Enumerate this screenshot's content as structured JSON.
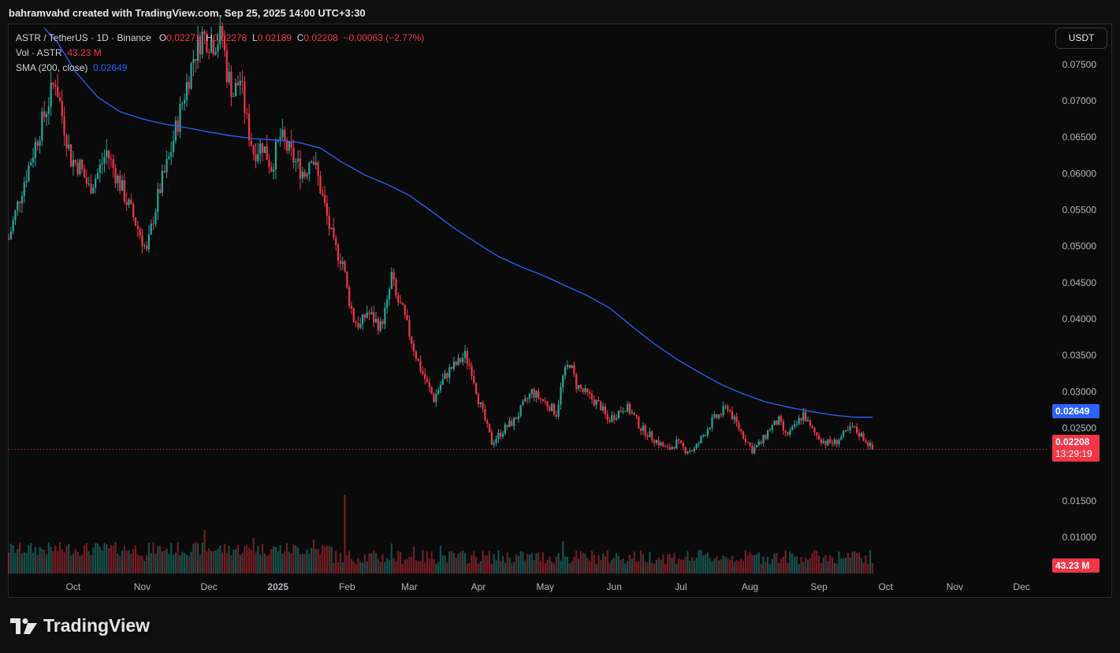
{
  "header": {
    "attribution": "bahramvahd created with TradingView.com, Sep 25, 2025 14:00 UTC+3:30"
  },
  "legend": {
    "symbol": "ASTR / TetherUS · 1D · Binance",
    "o_label": "O",
    "o_value": "0.02271",
    "h_label": "H",
    "h_value": "0.02278",
    "l_label": "L",
    "l_value": "0.02189",
    "c_label": "C",
    "c_value": "0.02208",
    "change": "−0.00063 (−2.77%)",
    "vol_label": "Vol · ASTR",
    "vol_value": "43.23 M",
    "sma_label": "SMA (200, close)",
    "sma_value": "0.02649"
  },
  "currency_button": "USDT",
  "price_tags": {
    "sma": "0.02649",
    "last_price": "0.02208",
    "countdown": "13:29:19",
    "volume": "43.23 M"
  },
  "footer": {
    "brand": "TradingView"
  },
  "colors": {
    "up": "#26a69a",
    "down": "#f23645",
    "sma": "#2962ff",
    "background": "#0a0a0a"
  },
  "chart_data": {
    "type": "candlestick",
    "symbol": "ASTR / TetherUS",
    "interval": "1D",
    "exchange": "Binance",
    "y_axis_ticks": [
      "0.07500",
      "0.07000",
      "0.06500",
      "0.06000",
      "0.05500",
      "0.05000",
      "0.04500",
      "0.04000",
      "0.03500",
      "0.03000",
      "0.02500",
      "0.01500",
      "0.01000"
    ],
    "y_tick_values": [
      0.075,
      0.07,
      0.065,
      0.06,
      0.055,
      0.05,
      0.045,
      0.04,
      0.035,
      0.03,
      0.025,
      0.015,
      0.01
    ],
    "ylim": [
      0.0048,
      0.0805
    ],
    "x_axis_labels": [
      "Oct",
      "Nov",
      "Dec",
      "2025",
      "Feb",
      "Mar",
      "Apr",
      "May",
      "Jun",
      "Jul",
      "Aug",
      "Sep",
      "Oct",
      "Nov",
      "Dec"
    ],
    "x_axis_days": [
      29,
      60,
      90,
      121,
      152,
      180,
      211,
      241,
      272,
      302,
      333,
      364,
      394,
      425,
      455
    ],
    "xlim": [
      0,
      467
    ],
    "start_date": "2024-09-02",
    "last_day": 388,
    "close_path": [
      [
        0,
        0.051
      ],
      [
        6,
        0.058
      ],
      [
        12,
        0.064
      ],
      [
        18,
        0.07
      ],
      [
        21,
        0.073
      ],
      [
        24,
        0.068
      ],
      [
        28,
        0.062
      ],
      [
        32,
        0.061
      ],
      [
        36,
        0.058
      ],
      [
        40,
        0.06
      ],
      [
        44,
        0.063
      ],
      [
        48,
        0.06
      ],
      [
        52,
        0.057
      ],
      [
        56,
        0.054
      ],
      [
        60,
        0.051
      ],
      [
        62,
        0.049
      ],
      [
        65,
        0.054
      ],
      [
        68,
        0.058
      ],
      [
        72,
        0.062
      ],
      [
        75,
        0.066
      ],
      [
        79,
        0.071
      ],
      [
        83,
        0.076
      ],
      [
        87,
        0.079
      ],
      [
        92,
        0.078
      ],
      [
        96,
        0.079
      ],
      [
        98,
        0.074
      ],
      [
        101,
        0.071
      ],
      [
        104,
        0.073
      ],
      [
        107,
        0.067
      ],
      [
        110,
        0.063
      ],
      [
        114,
        0.064
      ],
      [
        118,
        0.061
      ],
      [
        122,
        0.065
      ],
      [
        126,
        0.063
      ],
      [
        130,
        0.061
      ],
      [
        133,
        0.06
      ],
      [
        136,
        0.063
      ],
      [
        140,
        0.058
      ],
      [
        143,
        0.054
      ],
      [
        146,
        0.05
      ],
      [
        150,
        0.048
      ],
      [
        152,
        0.044
      ],
      [
        155,
        0.04
      ],
      [
        158,
        0.039
      ],
      [
        161,
        0.041
      ],
      [
        164,
        0.04
      ],
      [
        167,
        0.039
      ],
      [
        170,
        0.042
      ],
      [
        172,
        0.046
      ],
      [
        174,
        0.043
      ],
      [
        177,
        0.041
      ],
      [
        180,
        0.038
      ],
      [
        184,
        0.034
      ],
      [
        188,
        0.031
      ],
      [
        191,
        0.029
      ],
      [
        194,
        0.031
      ],
      [
        198,
        0.033
      ],
      [
        202,
        0.034
      ],
      [
        205,
        0.035
      ],
      [
        208,
        0.033
      ],
      [
        211,
        0.029
      ],
      [
        214,
        0.026
      ],
      [
        217,
        0.023
      ],
      [
        220,
        0.024
      ],
      [
        223,
        0.025
      ],
      [
        227,
        0.026
      ],
      [
        231,
        0.028
      ],
      [
        235,
        0.03
      ],
      [
        239,
        0.029
      ],
      [
        243,
        0.028
      ],
      [
        246,
        0.027
      ],
      [
        249,
        0.032
      ],
      [
        252,
        0.034
      ],
      [
        255,
        0.031
      ],
      [
        258,
        0.03
      ],
      [
        262,
        0.029
      ],
      [
        266,
        0.028
      ],
      [
        269,
        0.026
      ],
      [
        273,
        0.027
      ],
      [
        277,
        0.028
      ],
      [
        280,
        0.027
      ],
      [
        284,
        0.025
      ],
      [
        288,
        0.024
      ],
      [
        292,
        0.023
      ],
      [
        296,
        0.022
      ],
      [
        300,
        0.023
      ],
      [
        304,
        0.022
      ],
      [
        308,
        0.022
      ],
      [
        312,
        0.024
      ],
      [
        316,
        0.026
      ],
      [
        320,
        0.027
      ],
      [
        323,
        0.028
      ],
      [
        326,
        0.026
      ],
      [
        330,
        0.024
      ],
      [
        334,
        0.022
      ],
      [
        338,
        0.023
      ],
      [
        342,
        0.025
      ],
      [
        346,
        0.026
      ],
      [
        349,
        0.024
      ],
      [
        353,
        0.025
      ],
      [
        357,
        0.027
      ],
      [
        360,
        0.025
      ],
      [
        363,
        0.024
      ],
      [
        367,
        0.023
      ],
      [
        371,
        0.023
      ],
      [
        375,
        0.024
      ],
      [
        379,
        0.025
      ],
      [
        383,
        0.024
      ],
      [
        386,
        0.023
      ],
      [
        388,
        0.02208
      ]
    ],
    "sma_path": [
      [
        16,
        0.08
      ],
      [
        22,
        0.078
      ],
      [
        30,
        0.074
      ],
      [
        40,
        0.0705
      ],
      [
        50,
        0.0685
      ],
      [
        60,
        0.0675
      ],
      [
        70,
        0.0668
      ],
      [
        80,
        0.0663
      ],
      [
        90,
        0.0657
      ],
      [
        100,
        0.0652
      ],
      [
        110,
        0.0648
      ],
      [
        120,
        0.0646
      ],
      [
        130,
        0.0643
      ],
      [
        140,
        0.0635
      ],
      [
        150,
        0.0615
      ],
      [
        160,
        0.0598
      ],
      [
        170,
        0.0585
      ],
      [
        180,
        0.057
      ],
      [
        190,
        0.0548
      ],
      [
        200,
        0.0525
      ],
      [
        210,
        0.0505
      ],
      [
        220,
        0.0486
      ],
      [
        230,
        0.0472
      ],
      [
        240,
        0.046
      ],
      [
        250,
        0.0446
      ],
      [
        260,
        0.0432
      ],
      [
        270,
        0.0415
      ],
      [
        280,
        0.039
      ],
      [
        290,
        0.0366
      ],
      [
        300,
        0.0345
      ],
      [
        310,
        0.0327
      ],
      [
        320,
        0.031
      ],
      [
        330,
        0.0297
      ],
      [
        340,
        0.0286
      ],
      [
        350,
        0.0279
      ],
      [
        360,
        0.0273
      ],
      [
        370,
        0.0268
      ],
      [
        380,
        0.0265
      ],
      [
        388,
        0.02649
      ]
    ],
    "sma_label": "SMA (200, close)",
    "last_close": 0.02208,
    "last_sma": 0.02649,
    "last_volume": "43.23 M",
    "volume_spikes": [
      [
        88,
        5.0
      ],
      [
        110,
        4.0
      ],
      [
        137,
        3.8
      ],
      [
        151,
        9.5
      ],
      [
        172,
        3.3
      ],
      [
        182,
        2.9
      ],
      [
        194,
        3.0
      ],
      [
        249,
        3.6
      ],
      [
        356,
        1.6
      ],
      [
        385,
        1.8
      ]
    ]
  }
}
